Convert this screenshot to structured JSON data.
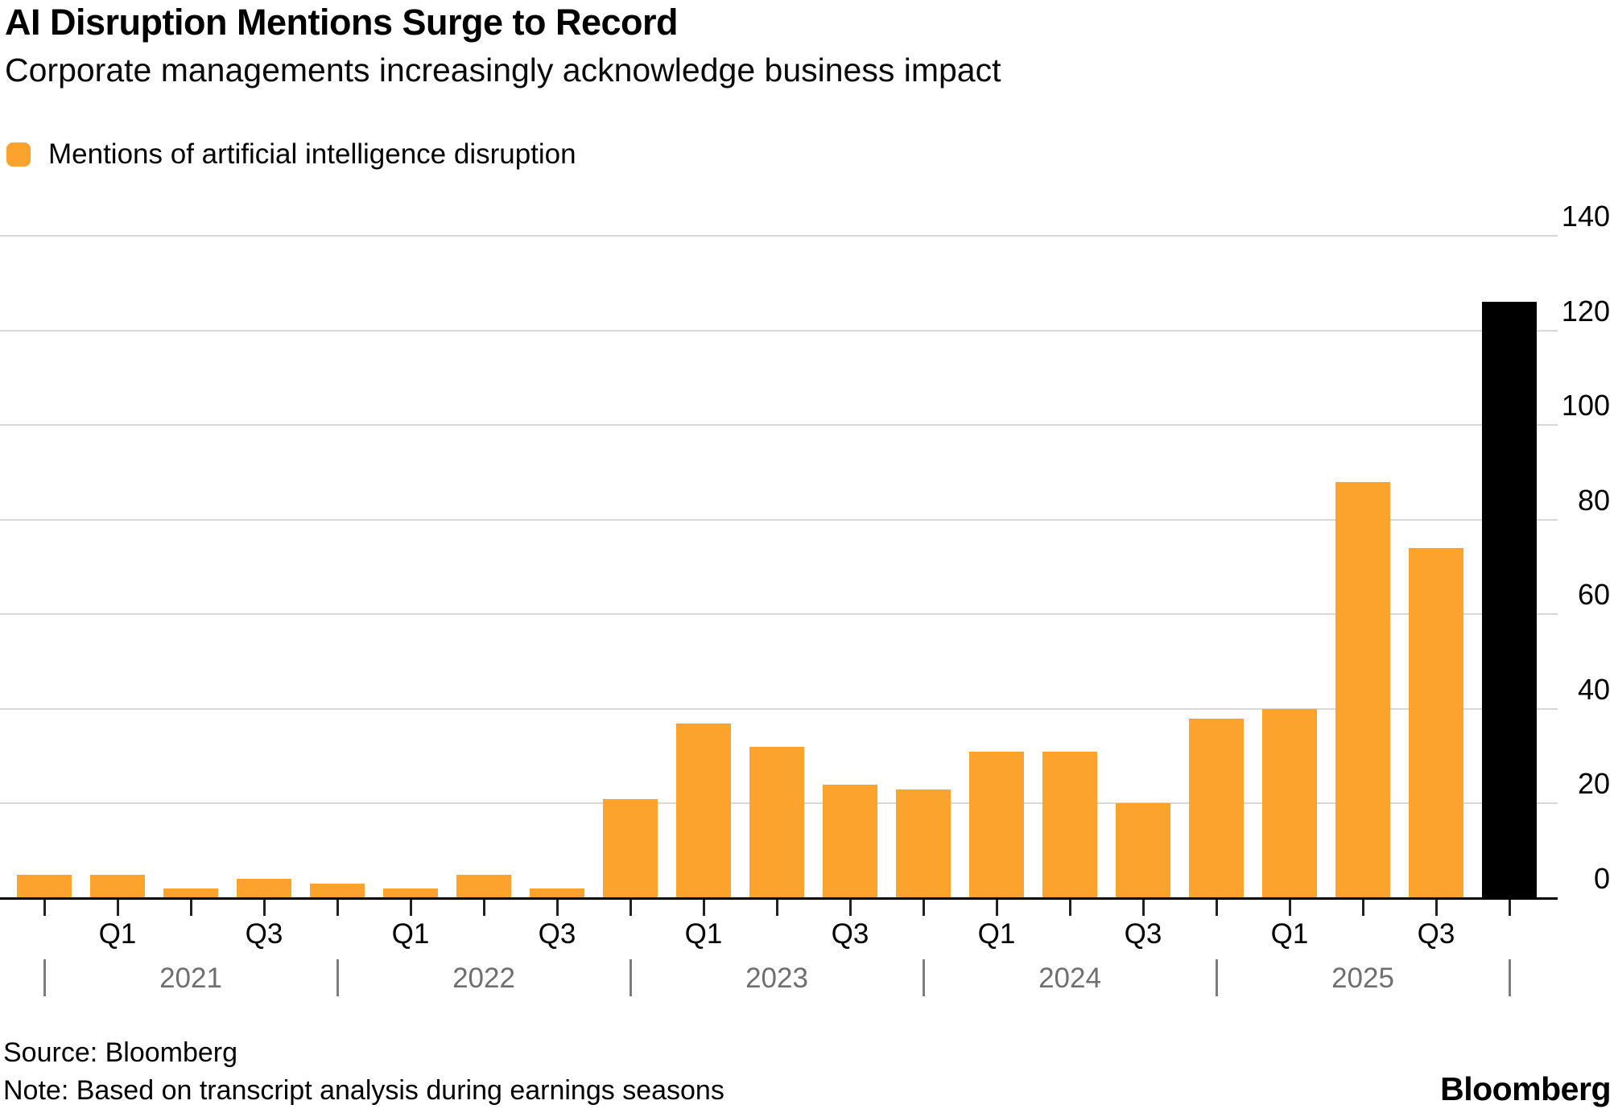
{
  "header": {
    "title": "AI Disruption Mentions Surge to Record",
    "subtitle": "Corporate managements increasingly acknowledge business impact"
  },
  "legend": {
    "label": "Mentions of artificial intelligence disruption",
    "swatch_color": "#FCA32D"
  },
  "footer": {
    "source": "Source: Bloomberg",
    "note": "Note: Based on transcript analysis during earnings seasons",
    "brand": "Bloomberg"
  },
  "colors": {
    "bar": "#FCA32D",
    "highlight_bar": "#000000",
    "grid": "#D8D8D8",
    "axis": "#000000",
    "quarter_tick": "#222222",
    "year_divider": "#7D7D7D",
    "year_text": "#6F6F6F"
  },
  "chart_data": {
    "type": "bar",
    "title": "AI Disruption Mentions Surge to Record",
    "subtitle": "Corporate managements increasingly acknowledge business impact",
    "legend_entries": [
      "Mentions of artificial intelligence disruption"
    ],
    "legend_position": "top-left",
    "categories": [
      "2020 Q4",
      "2021 Q1",
      "2021 Q2",
      "2021 Q3",
      "2021 Q4",
      "2022 Q1",
      "2022 Q2",
      "2022 Q3",
      "2022 Q4",
      "2023 Q1",
      "2023 Q2",
      "2023 Q3",
      "2023 Q4",
      "2024 Q1",
      "2024 Q2",
      "2024 Q3",
      "2024 Q4",
      "2025 Q1",
      "2025 Q2",
      "2025 Q3",
      "2025 Q4"
    ],
    "values": [
      5,
      5,
      2,
      4,
      3,
      2,
      5,
      2,
      21,
      37,
      32,
      24,
      23,
      31,
      31,
      20,
      38,
      40,
      88,
      74,
      126
    ],
    "highlight_index": 20,
    "xlabel": "",
    "ylabel": "",
    "ylim": [
      0,
      140
    ],
    "yticks": [
      0,
      20,
      40,
      60,
      80,
      100,
      120,
      140
    ],
    "y_axis_side": "right",
    "grid": "horizontal",
    "x_axis": {
      "quarter_labels": [
        {
          "text": "Q1",
          "index": 1
        },
        {
          "text": "Q3",
          "index": 3
        },
        {
          "text": "Q1",
          "index": 5
        },
        {
          "text": "Q3",
          "index": 7
        },
        {
          "text": "Q1",
          "index": 9
        },
        {
          "text": "Q3",
          "index": 11
        },
        {
          "text": "Q1",
          "index": 13
        },
        {
          "text": "Q3",
          "index": 15
        },
        {
          "text": "Q1",
          "index": 17
        },
        {
          "text": "Q3",
          "index": 19
        }
      ],
      "year_divider_indices": [
        0,
        4,
        8,
        12,
        16,
        20
      ],
      "year_labels": [
        {
          "text": "2021",
          "between": [
            0,
            4
          ]
        },
        {
          "text": "2022",
          "between": [
            4,
            8
          ]
        },
        {
          "text": "2023",
          "between": [
            8,
            12
          ]
        },
        {
          "text": "2024",
          "between": [
            12,
            16
          ]
        },
        {
          "text": "2025",
          "between": [
            16,
            20
          ]
        }
      ]
    }
  }
}
